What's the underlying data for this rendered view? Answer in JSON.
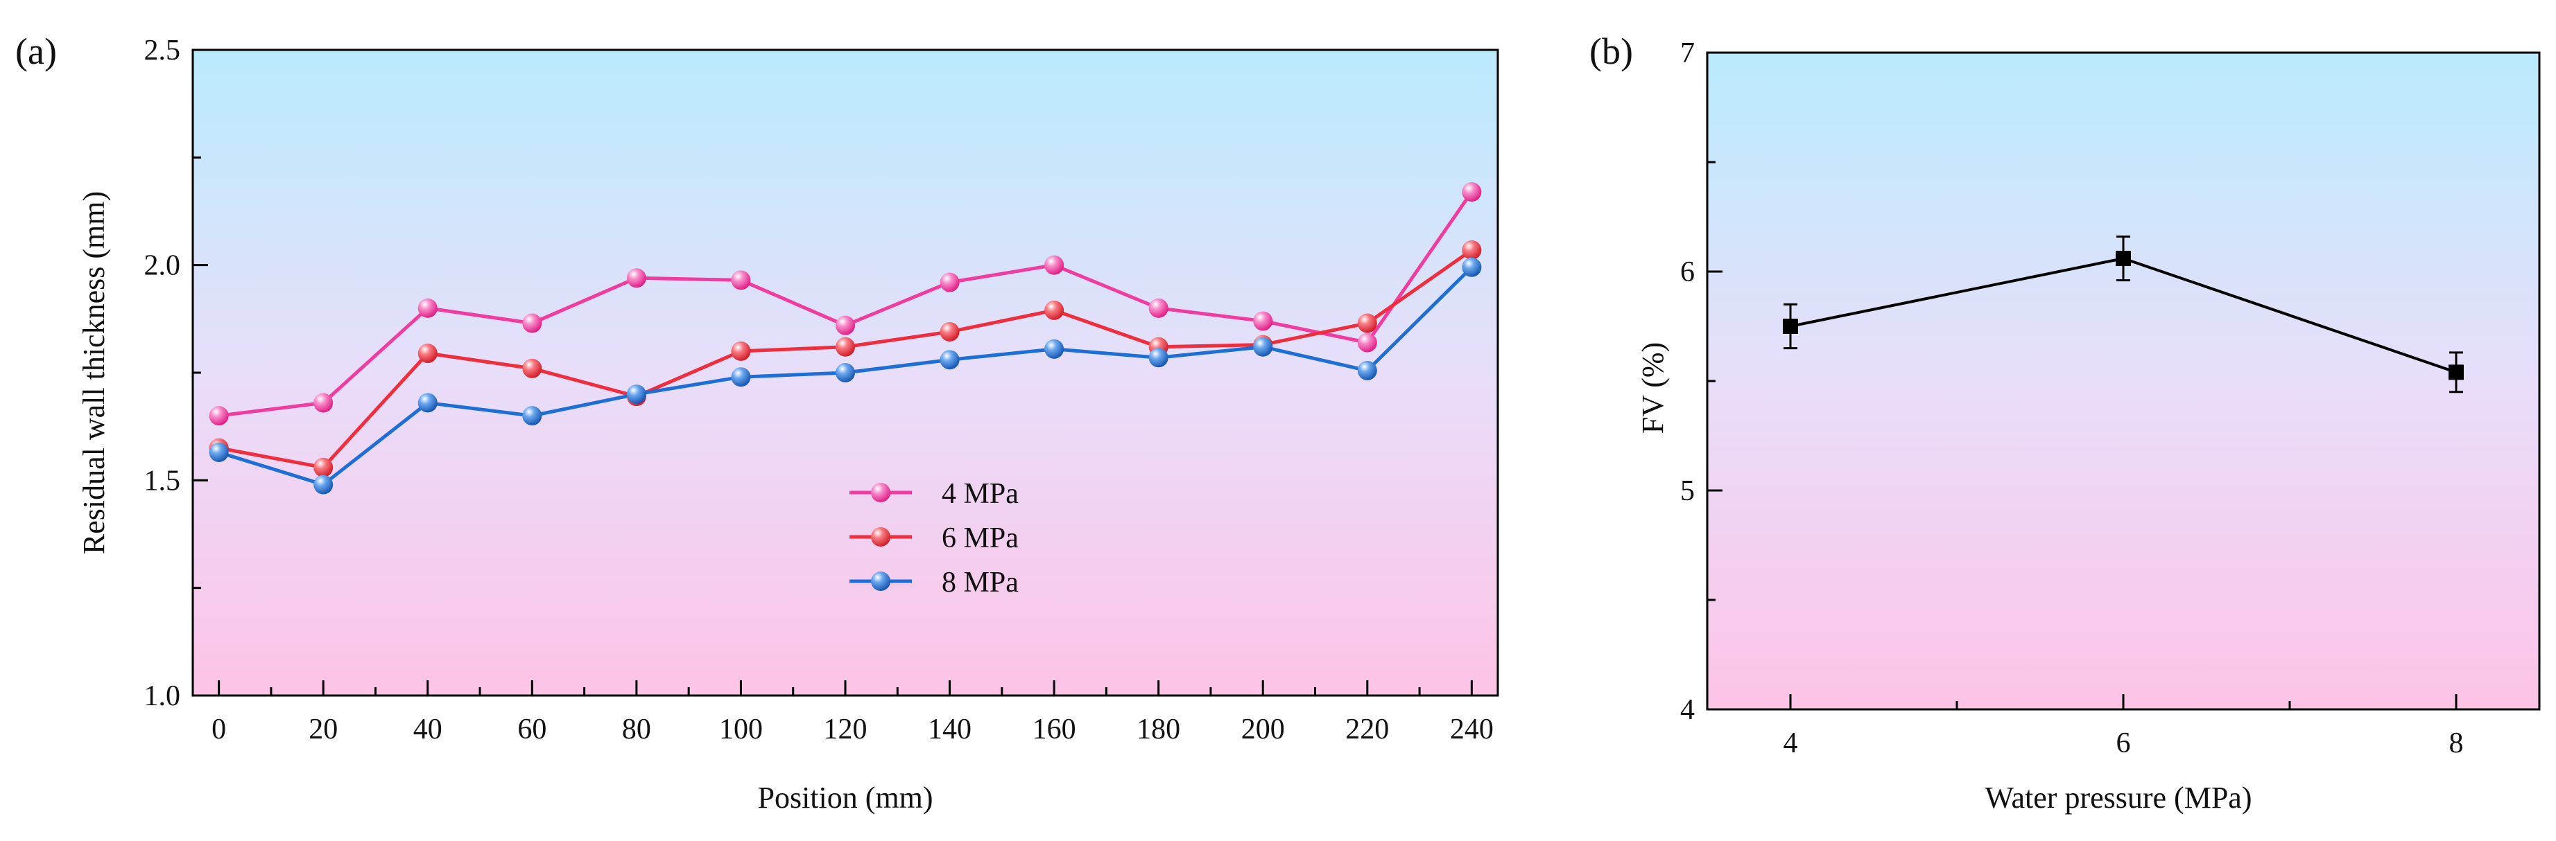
{
  "chart_data": [
    {
      "panel_label": "(a)",
      "type": "line",
      "xlabel": "Position (mm)",
      "ylabel": "Residual wall thickness (mm)",
      "xlim": [
        -5,
        245
      ],
      "ylim": [
        1.0,
        2.5
      ],
      "x": [
        0,
        20,
        40,
        60,
        80,
        100,
        120,
        140,
        160,
        180,
        200,
        220,
        240
      ],
      "x_ticks": [
        "0",
        "20",
        "40",
        "60",
        "80",
        "100",
        "120",
        "140",
        "160",
        "180",
        "200",
        "220",
        "240"
      ],
      "y_ticks": [
        "1.0",
        "1.5",
        "2.0",
        "2.5"
      ],
      "y_tick_values": [
        1.0,
        1.5,
        2.0,
        2.5
      ],
      "legend_position": "center",
      "series": [
        {
          "name": "4 MPa",
          "color": "#f03ca0",
          "values": [
            1.65,
            1.68,
            1.9,
            1.865,
            1.97,
            1.965,
            1.86,
            1.96,
            2.0,
            1.9,
            1.87,
            1.82,
            2.17
          ]
        },
        {
          "name": "6 MPa",
          "color": "#f02d3c",
          "values": [
            1.575,
            1.53,
            1.795,
            1.76,
            1.695,
            1.8,
            1.81,
            1.845,
            1.895,
            1.81,
            1.815,
            1.865,
            2.035
          ]
        },
        {
          "name": "8 MPa",
          "color": "#1d6fd6",
          "values": [
            1.565,
            1.49,
            1.68,
            1.65,
            1.7,
            1.74,
            1.75,
            1.78,
            1.805,
            1.785,
            1.81,
            1.755,
            1.995
          ]
        }
      ]
    },
    {
      "panel_label": "(b)",
      "type": "line",
      "xlabel": "Water pressure (MPa)",
      "ylabel": "FV (%)",
      "xlim": [
        3.5,
        8.5
      ],
      "ylim": [
        4,
        7
      ],
      "x": [
        4,
        6,
        8
      ],
      "x_ticks": [
        "4",
        "6",
        "8"
      ],
      "y_ticks": [
        "4",
        "5",
        "6",
        "7"
      ],
      "y_tick_values": [
        4,
        5,
        6,
        7
      ],
      "series": [
        {
          "name": "FV",
          "color": "#000000",
          "values": [
            5.75,
            6.06,
            5.54
          ],
          "error": [
            0.1,
            0.1,
            0.09
          ]
        }
      ]
    }
  ],
  "colors": {
    "background_top": "#b9ebfc",
    "background_middle": "#e8defa",
    "background_bottom": "#fdc3e6"
  }
}
